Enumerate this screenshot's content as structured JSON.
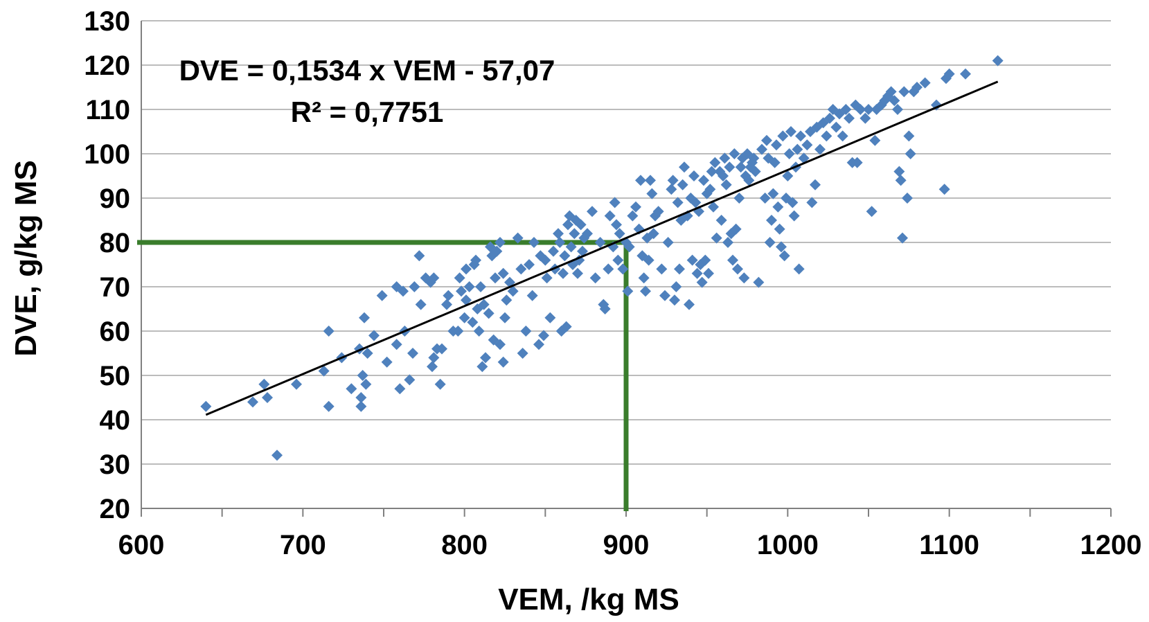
{
  "chart_data": {
    "type": "scatter",
    "title": "",
    "xlabel": "VEM, /kg MS",
    "ylabel": "DVE, g/kg MS",
    "xlim": [
      600,
      1200
    ],
    "ylim": [
      20,
      130
    ],
    "x_ticks": [
      600,
      700,
      800,
      900,
      1000,
      1100,
      1200
    ],
    "y_ticks": [
      20,
      30,
      40,
      50,
      60,
      70,
      80,
      90,
      100,
      110,
      120,
      130
    ],
    "x_tick_labels": [
      "600",
      "700",
      "800",
      "900",
      "1000",
      "1100",
      "1200"
    ],
    "y_tick_labels": [
      "20",
      "30",
      "40",
      "50",
      "60",
      "70",
      "80",
      "90",
      "100",
      "110",
      "120",
      "130"
    ],
    "grid": "horizontal",
    "colors": {
      "points": "#4F81BD",
      "trendline": "#000000",
      "guide": "#3A7D2C",
      "grid": "#A6A6A6"
    },
    "annotation": {
      "equation": "DVE = 0,1534 x VEM - 57,07",
      "r_squared": "R² = 0,7751"
    },
    "trendline": {
      "slope": 0.1534,
      "intercept": -57.07,
      "x_range": [
        640,
        1130
      ]
    },
    "guide_lines": {
      "x": 900,
      "y": 80
    },
    "series": [
      {
        "marker": "diamond",
        "points": [
          [
            640,
            43
          ],
          [
            669,
            44
          ],
          [
            676,
            48
          ],
          [
            678,
            45
          ],
          [
            684,
            32
          ],
          [
            696,
            48
          ],
          [
            713,
            51
          ],
          [
            716,
            60
          ],
          [
            716,
            43
          ],
          [
            724,
            54
          ],
          [
            730,
            47
          ],
          [
            735,
            56
          ],
          [
            736,
            43
          ],
          [
            736,
            45
          ],
          [
            737,
            50
          ],
          [
            738,
            63
          ],
          [
            739,
            48
          ],
          [
            740,
            55
          ],
          [
            744,
            59
          ],
          [
            749,
            68
          ],
          [
            752,
            53
          ],
          [
            758,
            57
          ],
          [
            758,
            70
          ],
          [
            760,
            47
          ],
          [
            762,
            69
          ],
          [
            763,
            60
          ],
          [
            766,
            49
          ],
          [
            768,
            55
          ],
          [
            769,
            70
          ],
          [
            772,
            77
          ],
          [
            773,
            66
          ],
          [
            776,
            72
          ],
          [
            779,
            71
          ],
          [
            780,
            52
          ],
          [
            781,
            54
          ],
          [
            781,
            72
          ],
          [
            783,
            56
          ],
          [
            785,
            48
          ],
          [
            786,
            56
          ],
          [
            789,
            66
          ],
          [
            790,
            68
          ],
          [
            793,
            60
          ],
          [
            796,
            60
          ],
          [
            797,
            72
          ],
          [
            798,
            69
          ],
          [
            800,
            63
          ],
          [
            801,
            67
          ],
          [
            801,
            74
          ],
          [
            803,
            70
          ],
          [
            805,
            62
          ],
          [
            806,
            75
          ],
          [
            807,
            76
          ],
          [
            808,
            65
          ],
          [
            809,
            60
          ],
          [
            810,
            70
          ],
          [
            811,
            52
          ],
          [
            812,
            66
          ],
          [
            813,
            54
          ],
          [
            815,
            64
          ],
          [
            816,
            79
          ],
          [
            817,
            77
          ],
          [
            818,
            58
          ],
          [
            819,
            72
          ],
          [
            820,
            78
          ],
          [
            822,
            57
          ],
          [
            822,
            80
          ],
          [
            824,
            73
          ],
          [
            824,
            53
          ],
          [
            825,
            63
          ],
          [
            826,
            67
          ],
          [
            828,
            71
          ],
          [
            830,
            69
          ],
          [
            833,
            81
          ],
          [
            835,
            74
          ],
          [
            836,
            55
          ],
          [
            838,
            60
          ],
          [
            840,
            75
          ],
          [
            842,
            68
          ],
          [
            843,
            80
          ],
          [
            846,
            57
          ],
          [
            847,
            77
          ],
          [
            849,
            59
          ],
          [
            850,
            76
          ],
          [
            851,
            72
          ],
          [
            853,
            63
          ],
          [
            855,
            78
          ],
          [
            856,
            74
          ],
          [
            858,
            82
          ],
          [
            859,
            80
          ],
          [
            860,
            60
          ],
          [
            861,
            73
          ],
          [
            862,
            77
          ],
          [
            863,
            61
          ],
          [
            864,
            84
          ],
          [
            865,
            86
          ],
          [
            866,
            79
          ],
          [
            867,
            75
          ],
          [
            868,
            82
          ],
          [
            869,
            85
          ],
          [
            870,
            73
          ],
          [
            871,
            76
          ],
          [
            872,
            84
          ],
          [
            873,
            78
          ],
          [
            874,
            81
          ],
          [
            876,
            82
          ],
          [
            879,
            87
          ],
          [
            881,
            72
          ],
          [
            884,
            80
          ],
          [
            886,
            66
          ],
          [
            887,
            65
          ],
          [
            889,
            74
          ],
          [
            890,
            86
          ],
          [
            892,
            79
          ],
          [
            893,
            89
          ],
          [
            894,
            84
          ],
          [
            895,
            76
          ],
          [
            896,
            82
          ],
          [
            898,
            74
          ],
          [
            900,
            80
          ],
          [
            901,
            69
          ],
          [
            902,
            79
          ],
          [
            904,
            86
          ],
          [
            906,
            88
          ],
          [
            908,
            83
          ],
          [
            909,
            94
          ],
          [
            910,
            77
          ],
          [
            911,
            72
          ],
          [
            912,
            69
          ],
          [
            913,
            81
          ],
          [
            914,
            76
          ],
          [
            915,
            94
          ],
          [
            916,
            91
          ],
          [
            917,
            82
          ],
          [
            918,
            86
          ],
          [
            920,
            87
          ],
          [
            922,
            74
          ],
          [
            924,
            68
          ],
          [
            926,
            80
          ],
          [
            928,
            92
          ],
          [
            929,
            94
          ],
          [
            930,
            67
          ],
          [
            931,
            70
          ],
          [
            932,
            89
          ],
          [
            933,
            74
          ],
          [
            934,
            85
          ],
          [
            935,
            93
          ],
          [
            936,
            97
          ],
          [
            938,
            86
          ],
          [
            939,
            66
          ],
          [
            940,
            90
          ],
          [
            941,
            76
          ],
          [
            942,
            95
          ],
          [
            943,
            89
          ],
          [
            944,
            73
          ],
          [
            945,
            87
          ],
          [
            946,
            75
          ],
          [
            947,
            71
          ],
          [
            948,
            94
          ],
          [
            949,
            76
          ],
          [
            950,
            91
          ],
          [
            951,
            73
          ],
          [
            952,
            92
          ],
          [
            953,
            96
          ],
          [
            954,
            88
          ],
          [
            955,
            98
          ],
          [
            956,
            81
          ],
          [
            958,
            96
          ],
          [
            959,
            85
          ],
          [
            960,
            95
          ],
          [
            961,
            99
          ],
          [
            962,
            93
          ],
          [
            963,
            80
          ],
          [
            964,
            97
          ],
          [
            965,
            82
          ],
          [
            966,
            76
          ],
          [
            967,
            100
          ],
          [
            968,
            83
          ],
          [
            969,
            74
          ],
          [
            970,
            90
          ],
          [
            971,
            97
          ],
          [
            972,
            99
          ],
          [
            973,
            72
          ],
          [
            974,
            95
          ],
          [
            975,
            100
          ],
          [
            976,
            94
          ],
          [
            977,
            97
          ],
          [
            978,
            98
          ],
          [
            979,
            99
          ],
          [
            980,
            96
          ],
          [
            982,
            71
          ],
          [
            984,
            101
          ],
          [
            986,
            90
          ],
          [
            987,
            103
          ],
          [
            988,
            99
          ],
          [
            989,
            80
          ],
          [
            990,
            85
          ],
          [
            991,
            91
          ],
          [
            992,
            98
          ],
          [
            993,
            102
          ],
          [
            994,
            88
          ],
          [
            995,
            83
          ],
          [
            996,
            79
          ],
          [
            997,
            104
          ],
          [
            998,
            77
          ],
          [
            999,
            90
          ],
          [
            1000,
            95
          ],
          [
            1001,
            100
          ],
          [
            1002,
            105
          ],
          [
            1003,
            89
          ],
          [
            1004,
            86
          ],
          [
            1005,
            97
          ],
          [
            1006,
            101
          ],
          [
            1007,
            74
          ],
          [
            1008,
            104
          ],
          [
            1010,
            99
          ],
          [
            1012,
            102
          ],
          [
            1014,
            105
          ],
          [
            1015,
            89
          ],
          [
            1017,
            93
          ],
          [
            1018,
            106
          ],
          [
            1020,
            101
          ],
          [
            1022,
            107
          ],
          [
            1024,
            104
          ],
          [
            1026,
            108
          ],
          [
            1028,
            110
          ],
          [
            1030,
            106
          ],
          [
            1032,
            109
          ],
          [
            1034,
            104
          ],
          [
            1036,
            110
          ],
          [
            1038,
            108
          ],
          [
            1040,
            98
          ],
          [
            1042,
            111
          ],
          [
            1043,
            98
          ],
          [
            1045,
            110
          ],
          [
            1048,
            108
          ],
          [
            1050,
            110
          ],
          [
            1052,
            87
          ],
          [
            1054,
            103
          ],
          [
            1055,
            110
          ],
          [
            1058,
            111
          ],
          [
            1060,
            112
          ],
          [
            1062,
            113
          ],
          [
            1064,
            114
          ],
          [
            1066,
            112
          ],
          [
            1068,
            110
          ],
          [
            1069,
            96
          ],
          [
            1070,
            94
          ],
          [
            1071,
            81
          ],
          [
            1072,
            114
          ],
          [
            1074,
            90
          ],
          [
            1075,
            104
          ],
          [
            1076,
            100
          ],
          [
            1078,
            114
          ],
          [
            1080,
            115
          ],
          [
            1085,
            116
          ],
          [
            1092,
            111
          ],
          [
            1097,
            92
          ],
          [
            1098,
            117
          ],
          [
            1100,
            118
          ],
          [
            1110,
            118
          ],
          [
            1130,
            121
          ]
        ]
      }
    ]
  }
}
